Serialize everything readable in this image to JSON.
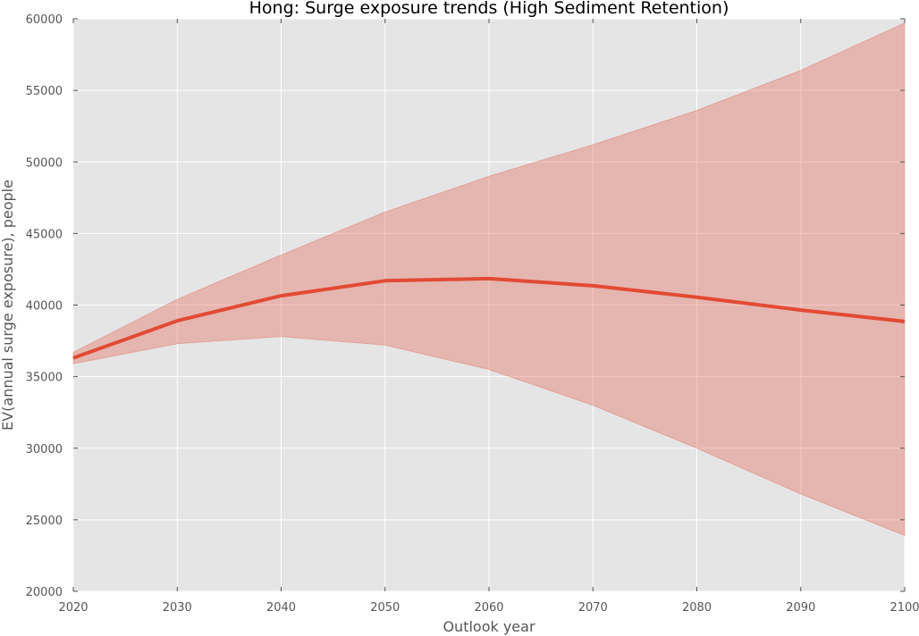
{
  "chart_data": {
    "type": "line",
    "title": "Hong: Surge exposure trends (High Sediment Retention)",
    "xlabel": "Outlook year",
    "ylabel": "EV(annual surge exposure), people",
    "xlim": [
      2020,
      2100
    ],
    "ylim": [
      20000,
      60000
    ],
    "x_ticks": [
      2020,
      2030,
      2040,
      2050,
      2060,
      2070,
      2080,
      2090,
      2100
    ],
    "y_ticks": [
      20000,
      25000,
      30000,
      35000,
      40000,
      45000,
      50000,
      55000,
      60000
    ],
    "grid": true,
    "background": "#e5e5e5",
    "series": [
      {
        "x": [
          2020,
          2030,
          2040,
          2050,
          2060,
          2070,
          2080,
          2090,
          2100
        ],
        "values": [
          36300,
          38900,
          40650,
          41700,
          41850,
          41350,
          40550,
          39650,
          38850
        ],
        "band_upper": [
          36700,
          40400,
          43500,
          46500,
          49000,
          51200,
          53600,
          56400,
          59700
        ],
        "band_lower": [
          35900,
          37300,
          37800,
          37200,
          35500,
          33000,
          30000,
          26800,
          23900
        ],
        "color": "#e24a33",
        "band_color": "#e24a33"
      }
    ]
  }
}
